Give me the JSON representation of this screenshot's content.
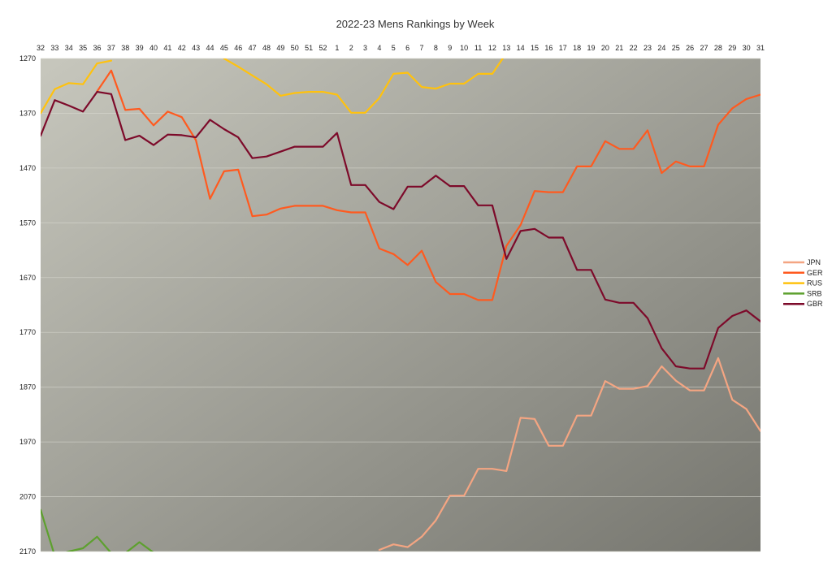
{
  "chart_data": {
    "type": "line",
    "title": "2022-23 Mens Rankings by Week",
    "xlabel": "",
    "ylabel": "",
    "categories": [
      "32",
      "33",
      "34",
      "35",
      "36",
      "37",
      "38",
      "39",
      "40",
      "41",
      "42",
      "43",
      "44",
      "45",
      "46",
      "47",
      "48",
      "49",
      "50",
      "51",
      "52",
      "1",
      "2",
      "3",
      "4",
      "5",
      "6",
      "7",
      "8",
      "9",
      "10",
      "11",
      "12",
      "13",
      "14",
      "15",
      "16",
      "17",
      "18",
      "19",
      "20",
      "21",
      "22",
      "23",
      "24",
      "25",
      "26",
      "27",
      "28",
      "29",
      "30",
      "31"
    ],
    "y_ticks": [
      "1270",
      "1370",
      "1470",
      "1570",
      "1670",
      "1770",
      "1870",
      "1970",
      "2070",
      "2170"
    ],
    "ylim": [
      1270,
      2170
    ],
    "y_reversed": true,
    "grid": true,
    "legend_position": "right",
    "series": [
      {
        "name": "JPN",
        "color": "#f4a582",
        "values": [
          null,
          null,
          null,
          null,
          null,
          null,
          null,
          null,
          null,
          null,
          null,
          null,
          null,
          null,
          null,
          null,
          null,
          null,
          null,
          null,
          null,
          null,
          null,
          null,
          2167,
          2157,
          2162,
          2143,
          2113,
          2068,
          2068,
          2019,
          2019,
          2023,
          1926,
          1928,
          1977,
          1977,
          1922,
          1922,
          1859,
          1873,
          1873,
          1868,
          1832,
          1858,
          1876,
          1876,
          1817,
          1893,
          1910,
          1950
        ]
      },
      {
        "name": "GER",
        "color": "#ff5a1f",
        "values": [
          null,
          null,
          null,
          null,
          1330,
          1292,
          1364,
          1362,
          1392,
          1367,
          1377,
          1419,
          1526,
          1476,
          1473,
          1558,
          1555,
          1544,
          1539,
          1539,
          1539,
          1547,
          1551,
          1551,
          1617,
          1627,
          1647,
          1621,
          1678,
          1700,
          1700,
          1711,
          1711,
          1612,
          1574,
          1512,
          1514,
          1514,
          1467,
          1467,
          1421,
          1435,
          1435,
          1401,
          1479,
          1458,
          1467,
          1467,
          1391,
          1361,
          1344,
          1336
        ]
      },
      {
        "name": "RUS",
        "color": "#ffc20e",
        "values": [
          1370,
          1326,
          1315,
          1317,
          1279,
          1274,
          null,
          null,
          null,
          null,
          null,
          null,
          null,
          1270,
          1285,
          1301,
          1317,
          1338,
          1333,
          1331,
          1331,
          1336,
          1369,
          1369,
          1342,
          1298,
          1296,
          1322,
          1325,
          1316,
          1316,
          1298,
          1298,
          1260,
          null,
          null,
          null,
          null,
          null,
          null,
          null,
          null,
          null,
          null,
          null,
          null,
          null,
          null,
          null,
          null,
          null,
          null
        ]
      },
      {
        "name": "SRB",
        "color": "#5da02e",
        "values": [
          2094,
          2178,
          2170,
          2164,
          2143,
          2173,
          2173,
          2153,
          2172,
          null,
          null,
          null,
          null,
          null,
          null,
          null,
          null,
          null,
          null,
          null,
          null,
          null,
          null,
          null,
          null,
          null,
          null,
          null,
          null,
          null,
          null,
          null,
          null,
          null,
          null,
          null,
          null,
          null,
          null,
          null,
          null,
          null,
          null,
          null,
          null,
          null,
          null,
          null,
          null,
          null,
          null,
          null
        ]
      },
      {
        "name": "GBR",
        "color": "#7d0a2a",
        "values": [
          1411,
          1346,
          1356,
          1367,
          1331,
          1335,
          1419,
          1411,
          1428,
          1409,
          1410,
          1414,
          1382,
          1399,
          1414,
          1452,
          1449,
          1440,
          1431,
          1431,
          1431,
          1406,
          1501,
          1501,
          1532,
          1545,
          1504,
          1504,
          1484,
          1503,
          1503,
          1538,
          1538,
          1636,
          1585,
          1581,
          1597,
          1597,
          1656,
          1656,
          1710,
          1716,
          1716,
          1744,
          1799,
          1832,
          1836,
          1836,
          1762,
          1740,
          1730,
          1750
        ]
      }
    ]
  }
}
